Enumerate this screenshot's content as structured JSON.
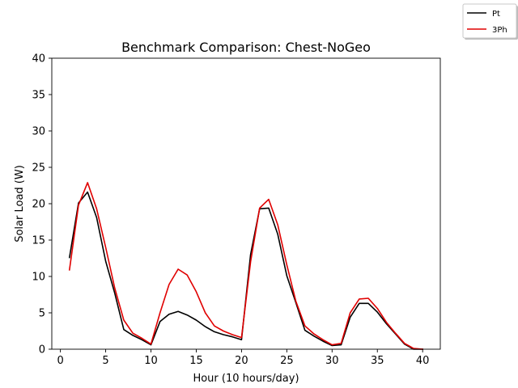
{
  "chart_data": {
    "type": "line",
    "title": "Benchmark Comparison: Chest-NoGeo",
    "xlabel": "Hour (10 hours/day)",
    "ylabel": "Solar Load (W)",
    "xlim": [
      -0.95,
      41.95
    ],
    "ylim": [
      0,
      40
    ],
    "xticks": [
      0,
      5,
      10,
      15,
      20,
      25,
      30,
      35,
      40
    ],
    "yticks": [
      0,
      5,
      10,
      15,
      20,
      25,
      30,
      35,
      40
    ],
    "grid": false,
    "legend_position": "top-right",
    "x": [
      1,
      2,
      3,
      4,
      5,
      6,
      7,
      8,
      9,
      10,
      11,
      12,
      13,
      14,
      15,
      16,
      17,
      18,
      19,
      20,
      21,
      22,
      23,
      24,
      25,
      26,
      27,
      28,
      29,
      30,
      31,
      32,
      33,
      34,
      35,
      36,
      37,
      38,
      39,
      40
    ],
    "series": [
      {
        "name": "Pt",
        "color": "#000000",
        "values": [
          12.6,
          20.1,
          21.6,
          18.1,
          12.1,
          7.7,
          2.7,
          1.9,
          1.3,
          0.6,
          3.8,
          4.8,
          5.2,
          4.7,
          4.0,
          3.1,
          2.4,
          2.0,
          1.7,
          1.3,
          13.0,
          19.3,
          19.4,
          15.8,
          10.1,
          6.4,
          2.6,
          1.8,
          1.1,
          0.5,
          0.6,
          4.4,
          6.3,
          6.3,
          5.1,
          3.5,
          2.1,
          0.7,
          0.0,
          0.0
        ]
      },
      {
        "name": "3Ph",
        "color": "#e00000",
        "values": [
          10.9,
          19.8,
          22.9,
          19.3,
          14.0,
          8.4,
          4.0,
          2.2,
          1.5,
          0.7,
          5.0,
          8.9,
          11.0,
          10.2,
          7.9,
          5.0,
          3.2,
          2.5,
          2.0,
          1.6,
          12.0,
          19.4,
          20.6,
          17.1,
          11.6,
          6.6,
          3.2,
          2.1,
          1.3,
          0.6,
          0.8,
          5.0,
          6.9,
          7.0,
          5.6,
          3.7,
          2.2,
          0.8,
          0.1,
          0.0
        ]
      }
    ]
  }
}
